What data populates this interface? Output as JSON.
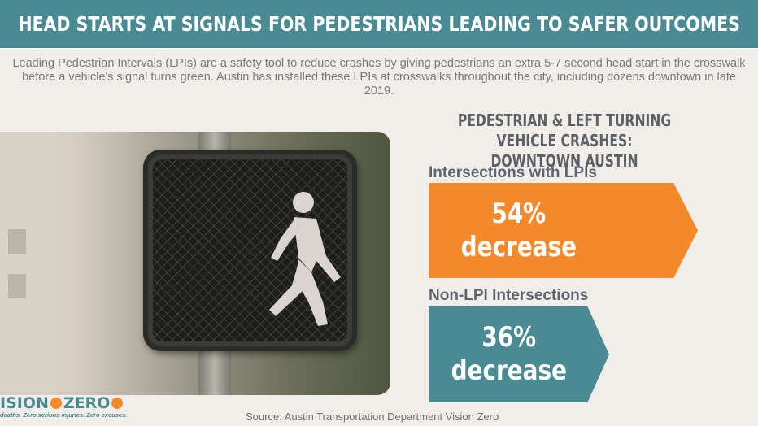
{
  "banner": {
    "title": "HEAD STARTS AT SIGNALS FOR PEDESTRIANS LEADING TO SAFER OUTCOMES"
  },
  "intro": {
    "text": "Leading Pedestrian Intervals (LPIs) are a safety tool to reduce crashes by giving pedestrians an extra 5-7 second head start in the crosswalk before a vehicle's signal turns green. Austin has installed these LPIs at crosswalks throughout the city, including dozens downtown in late 2019."
  },
  "chart": {
    "heading_line1": "PEDESTRIAN & LEFT TURNING VEHICLE CRASHES:",
    "heading_line2": "DOWNTOWN AUSTIN"
  },
  "stats": [
    {
      "label": "Intersections with LPIs",
      "value": "54%",
      "change": "decrease",
      "color": "#f5882a"
    },
    {
      "label": "Non-LPI Intersections",
      "value": "36%",
      "change": "decrease",
      "color": "#4a8a93"
    }
  ],
  "logo": {
    "word_left": "ISION",
    "word_right": "ZERO",
    "tagline": "deaths. Zero serious injuries. Zero excuses."
  },
  "source": "Source: Austin Transportation Department Vision Zero",
  "colors": {
    "banner": "#4a8a93",
    "accent_orange": "#f5882a",
    "accent_teal": "#4a8a93",
    "background": "#f1eee9"
  }
}
